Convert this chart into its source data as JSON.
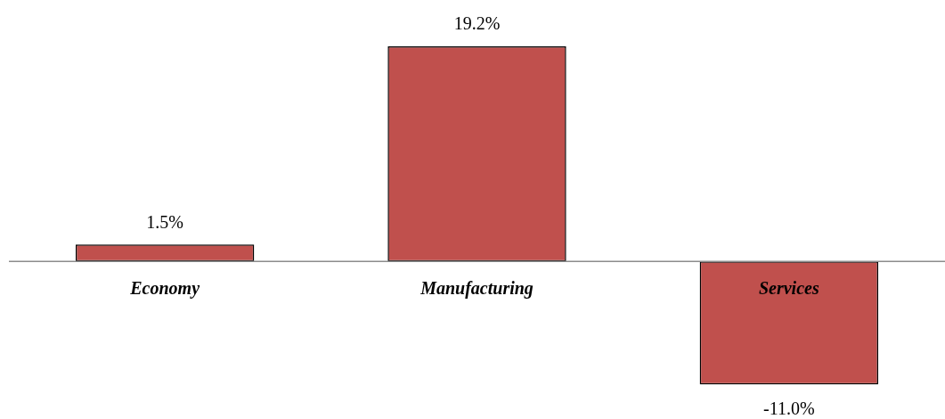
{
  "chart_data": {
    "type": "bar",
    "categories": [
      "Economy",
      "Manufacturing",
      "Services"
    ],
    "values": [
      1.5,
      19.2,
      -11.0
    ],
    "color": "#c0504d",
    "value_labels": [
      "1.5%",
      "19.2%",
      "-11.0%"
    ]
  }
}
